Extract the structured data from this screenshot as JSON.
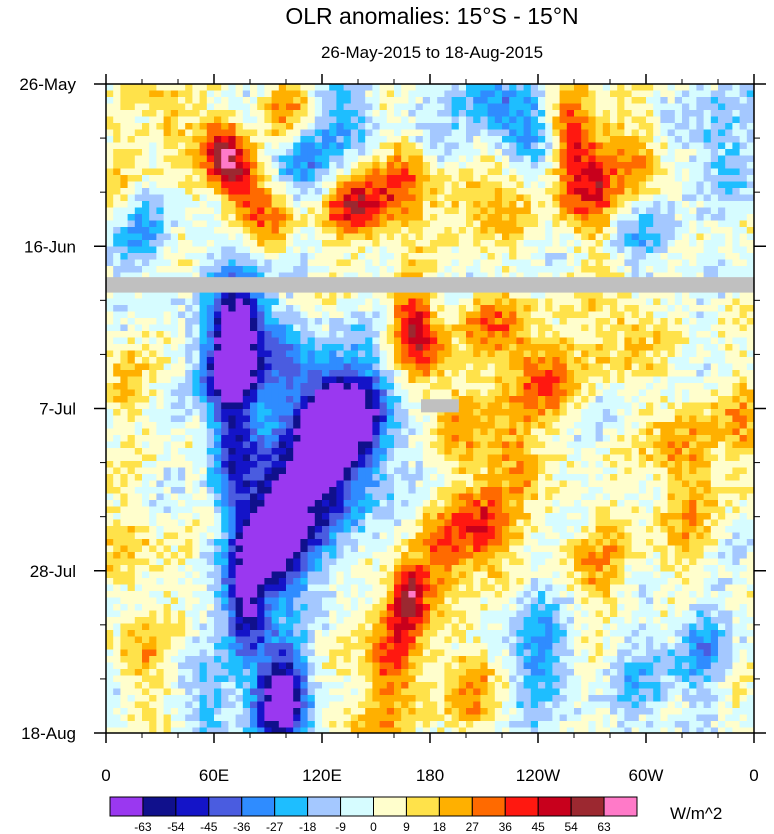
{
  "chart_data": {
    "type": "heatmap",
    "title": "OLR anomalies: 15°S - 15°N",
    "subtitle": "26-May-2015 to 18-Aug-2015",
    "xlabel": "",
    "ylabel": "",
    "x_ticks": [
      {
        "lon": 0,
        "label": "0"
      },
      {
        "lon": 60,
        "label": "60E"
      },
      {
        "lon": 120,
        "label": "120E"
      },
      {
        "lon": 180,
        "label": "180"
      },
      {
        "lon": 240,
        "label": "120W"
      },
      {
        "lon": 300,
        "label": "60W"
      },
      {
        "lon": 360,
        "label": "0"
      }
    ],
    "xlim": [
      0,
      360
    ],
    "y_ticks": [
      {
        "day": 0,
        "label": "26-May"
      },
      {
        "day": 21,
        "label": "16-Jun"
      },
      {
        "day": 42,
        "label": "7-Jul"
      },
      {
        "day": 63,
        "label": "28-Jul"
      },
      {
        "day": 84,
        "label": "18-Aug"
      }
    ],
    "ylim": [
      0,
      84
    ],
    "missing_data": [
      {
        "lon_range": [
          0,
          360
        ],
        "day_range": [
          25.0,
          27.0
        ]
      },
      {
        "lon_range": [
          175,
          196
        ],
        "day_range": [
          40.8,
          42.5
        ]
      }
    ],
    "features": [
      {
        "lon": 65,
        "day": 9,
        "amp": 55,
        "sx": 8,
        "sy": 3
      },
      {
        "lon": 75,
        "day": 13,
        "amp": 40,
        "sx": 8,
        "sy": 3
      },
      {
        "lon": 100,
        "day": 3,
        "amp": 30,
        "sx": 10,
        "sy": 3
      },
      {
        "lon": 110,
        "day": 10,
        "amp": -30,
        "sx": 12,
        "sy": 4
      },
      {
        "lon": 90,
        "day": 17,
        "amp": 25,
        "sx": 10,
        "sy": 3
      },
      {
        "lon": 135,
        "day": 4,
        "amp": -25,
        "sx": 10,
        "sy": 4
      },
      {
        "lon": 165,
        "day": 12,
        "amp": 30,
        "sx": 10,
        "sy": 4
      },
      {
        "lon": 190,
        "day": 9,
        "amp": -20,
        "sx": 12,
        "sy": 3
      },
      {
        "lon": 140,
        "day": 16,
        "amp": 45,
        "sx": 16,
        "sy": 3
      },
      {
        "lon": 210,
        "day": 14,
        "amp": 25,
        "sx": 18,
        "sy": 4
      },
      {
        "lon": 205,
        "day": 2,
        "amp": -20,
        "sx": 14,
        "sy": 3
      },
      {
        "lon": 235,
        "day": 6,
        "amp": -35,
        "sx": 12,
        "sy": 4
      },
      {
        "lon": 258,
        "day": 8,
        "amp": 45,
        "sx": 8,
        "sy": 6
      },
      {
        "lon": 272,
        "day": 13,
        "amp": 35,
        "sx": 8,
        "sy": 5
      },
      {
        "lon": 295,
        "day": 10,
        "amp": 25,
        "sx": 10,
        "sy": 4
      },
      {
        "lon": 300,
        "day": 20,
        "amp": -20,
        "sx": 14,
        "sy": 3
      },
      {
        "lon": 340,
        "day": 7,
        "amp": -20,
        "sx": 14,
        "sy": 5
      },
      {
        "lon": 20,
        "day": 19,
        "amp": -25,
        "sx": 10,
        "sy": 4
      },
      {
        "lon": 35,
        "day": 5,
        "amp": 20,
        "sx": 10,
        "sy": 4
      },
      {
        "lon": 10,
        "day": 12,
        "amp": 15,
        "sx": 8,
        "sy": 4
      },
      {
        "lon": 72,
        "day": 32,
        "amp": -50,
        "sx": 10,
        "sy": 5
      },
      {
        "lon": 62,
        "day": 38,
        "amp": -30,
        "sx": 8,
        "sy": 4
      },
      {
        "lon": 100,
        "day": 36,
        "amp": -25,
        "sx": 10,
        "sy": 4
      },
      {
        "lon": 125,
        "day": 44,
        "amp": -35,
        "sx": 14,
        "sy": 4
      },
      {
        "lon": 150,
        "day": 42,
        "amp": -25,
        "sx": 10,
        "sy": 5
      },
      {
        "lon": 105,
        "day": 52,
        "amp": -30,
        "sx": 12,
        "sy": 5
      },
      {
        "lon": 90,
        "day": 60,
        "amp": -35,
        "sx": 12,
        "sy": 4
      },
      {
        "lon": 75,
        "day": 68,
        "amp": -25,
        "sx": 8,
        "sy": 5
      },
      {
        "lon": 100,
        "day": 79,
        "amp": -35,
        "sx": 10,
        "sy": 5
      },
      {
        "lon": 60,
        "day": 80,
        "amp": -20,
        "sx": 10,
        "sy": 4
      },
      {
        "lon": 170,
        "day": 31,
        "amp": 45,
        "sx": 8,
        "sy": 4
      },
      {
        "lon": 182,
        "day": 36,
        "amp": 20,
        "sx": 10,
        "sy": 4
      },
      {
        "lon": 215,
        "day": 31,
        "amp": 25,
        "sx": 14,
        "sy": 3
      },
      {
        "lon": 240,
        "day": 38,
        "amp": 35,
        "sx": 14,
        "sy": 4
      },
      {
        "lon": 195,
        "day": 45,
        "amp": 20,
        "sx": 10,
        "sy": 4
      },
      {
        "lon": 225,
        "day": 48,
        "amp": 30,
        "sx": 10,
        "sy": 4
      },
      {
        "lon": 210,
        "day": 58,
        "amp": 45,
        "sx": 12,
        "sy": 4
      },
      {
        "lon": 185,
        "day": 61,
        "amp": 25,
        "sx": 10,
        "sy": 4
      },
      {
        "lon": 168,
        "day": 66,
        "amp": 55,
        "sx": 7,
        "sy": 3
      },
      {
        "lon": 158,
        "day": 74,
        "amp": 40,
        "sx": 10,
        "sy": 5
      },
      {
        "lon": 200,
        "day": 78,
        "amp": 25,
        "sx": 12,
        "sy": 5
      },
      {
        "lon": 145,
        "day": 83,
        "amp": 20,
        "sx": 10,
        "sy": 3
      },
      {
        "lon": 270,
        "day": 62,
        "amp": 20,
        "sx": 14,
        "sy": 5
      },
      {
        "lon": 285,
        "day": 32,
        "amp": 20,
        "sx": 14,
        "sy": 4
      },
      {
        "lon": 320,
        "day": 47,
        "amp": 25,
        "sx": 12,
        "sy": 5
      },
      {
        "lon": 355,
        "day": 45,
        "amp": 25,
        "sx": 8,
        "sy": 5
      },
      {
        "lon": 10,
        "day": 38,
        "amp": 15,
        "sx": 10,
        "sy": 4
      },
      {
        "lon": 15,
        "day": 60,
        "amp": 15,
        "sx": 10,
        "sy": 5
      },
      {
        "lon": 20,
        "day": 74,
        "amp": 20,
        "sx": 10,
        "sy": 4
      },
      {
        "lon": 75,
        "day": 35,
        "amp": -45,
        "sx": 10,
        "sy": 7
      },
      {
        "lon": 70,
        "day": 48,
        "amp": -40,
        "sx": 8,
        "sy": 5
      },
      {
        "lon": 125,
        "day": 48,
        "amp": -55,
        "sx": 18,
        "sy": 7
      },
      {
        "lon": 130,
        "day": 42,
        "amp": -35,
        "sx": 12,
        "sy": 4
      },
      {
        "lon": 95,
        "day": 58,
        "amp": -50,
        "sx": 14,
        "sy": 6
      },
      {
        "lon": 80,
        "day": 66,
        "amp": -40,
        "sx": 8,
        "sy": 6
      },
      {
        "lon": 95,
        "day": 80,
        "amp": -50,
        "sx": 10,
        "sy": 4
      },
      {
        "lon": 240,
        "day": 73,
        "amp": -25,
        "sx": 14,
        "sy": 6
      },
      {
        "lon": 320,
        "day": 58,
        "amp": 15,
        "sx": 12,
        "sy": 5
      },
      {
        "lon": 300,
        "day": 78,
        "amp": -20,
        "sx": 10,
        "sy": 5
      },
      {
        "lon": 330,
        "day": 73,
        "amp": -25,
        "sx": 10,
        "sy": 5
      }
    ],
    "colorbar": {
      "levels": [
        -63,
        -54,
        -45,
        -36,
        -27,
        -18,
        -9,
        0,
        9,
        18,
        27,
        36,
        45,
        54,
        63
      ],
      "colors": [
        "#9a38f0",
        "#10108c",
        "#1414c8",
        "#4a5ce0",
        "#2f8cff",
        "#1ebeff",
        "#a4c8ff",
        "#d6fcff",
        "#fffecc",
        "#ffe24a",
        "#ffb000",
        "#ff6a00",
        "#ff1810",
        "#c8001c",
        "#9c2830",
        "#ff7ac8"
      ],
      "units": "W/m^2"
    },
    "colors": {
      "missing": "#c0c0c0",
      "axis": "#000000"
    }
  }
}
